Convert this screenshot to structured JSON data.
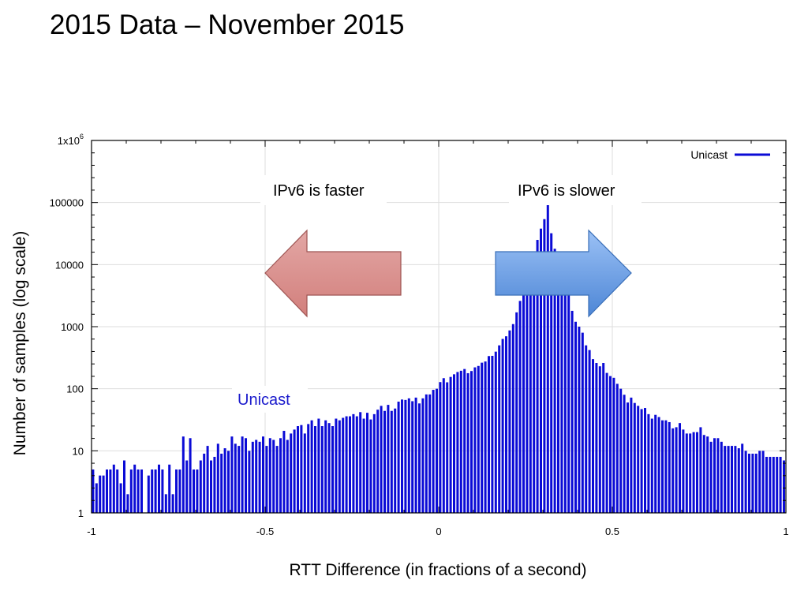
{
  "slide": {
    "title": "2015 Data – November 2015"
  },
  "chart_data": {
    "type": "bar",
    "title": "",
    "xlabel": "RTT Difference (in fractions of a second)",
    "ylabel": "Number of samples (log scale)",
    "xlim": [
      -1,
      1
    ],
    "ylim": [
      1,
      1000000
    ],
    "yscale": "log",
    "grid": true,
    "legend": {
      "position": "top-right",
      "entries": [
        {
          "name": "Unicast",
          "color": "#0b0bd6"
        }
      ]
    },
    "x_ticks": [
      "-1",
      "-0.5",
      "0",
      "0.5",
      "1"
    ],
    "y_ticks": [
      {
        "base": "1x10",
        "exp": "6"
      },
      {
        "base": "100000",
        "exp": ""
      },
      {
        "base": "10000",
        "exp": ""
      },
      {
        "base": "1000",
        "exp": ""
      },
      {
        "base": "100",
        "exp": ""
      },
      {
        "base": "10",
        "exp": ""
      },
      {
        "base": "1",
        "exp": ""
      }
    ],
    "annotations": {
      "faster": "IPv6 is faster",
      "slower": "IPv6 is slower",
      "series_label": "Unicast"
    },
    "series": [
      {
        "name": "Unicast",
        "color": "#0b0bd6",
        "bin_width": 0.01,
        "x": [
          -0.995,
          -0.985,
          -0.975,
          -0.965,
          -0.955,
          -0.945,
          -0.935,
          -0.925,
          -0.915,
          -0.905,
          -0.895,
          -0.885,
          -0.875,
          -0.865,
          -0.855,
          -0.845,
          -0.835,
          -0.825,
          -0.815,
          -0.805,
          -0.795,
          -0.785,
          -0.775,
          -0.765,
          -0.755,
          -0.745,
          -0.735,
          -0.725,
          -0.715,
          -0.705,
          -0.695,
          -0.685,
          -0.675,
          -0.665,
          -0.655,
          -0.645,
          -0.635,
          -0.625,
          -0.615,
          -0.605,
          -0.595,
          -0.585,
          -0.575,
          -0.565,
          -0.555,
          -0.545,
          -0.535,
          -0.525,
          -0.515,
          -0.505,
          -0.495,
          -0.485,
          -0.475,
          -0.465,
          -0.455,
          -0.445,
          -0.435,
          -0.425,
          -0.415,
          -0.405,
          -0.395,
          -0.385,
          -0.375,
          -0.365,
          -0.355,
          -0.345,
          -0.335,
          -0.325,
          -0.315,
          -0.305,
          -0.295,
          -0.285,
          -0.275,
          -0.265,
          -0.255,
          -0.245,
          -0.235,
          -0.225,
          -0.215,
          -0.205,
          -0.195,
          -0.185,
          -0.175,
          -0.165,
          -0.155,
          -0.145,
          -0.135,
          -0.125,
          -0.115,
          -0.105,
          -0.095,
          -0.085,
          -0.075,
          -0.065,
          -0.055,
          -0.045,
          -0.035,
          -0.025,
          -0.015,
          -0.005,
          0.005,
          0.015,
          0.025,
          0.035,
          0.045,
          0.055,
          0.065,
          0.075,
          0.085,
          0.095,
          0.105,
          0.115,
          0.125,
          0.135,
          0.145,
          0.155,
          0.165,
          0.175,
          0.185,
          0.195,
          0.205,
          0.215,
          0.225,
          0.235,
          0.245,
          0.255,
          0.265,
          0.275,
          0.285,
          0.295,
          0.305,
          0.315,
          0.325,
          0.335,
          0.345,
          0.355,
          0.365,
          0.375,
          0.385,
          0.395,
          0.405,
          0.415,
          0.425,
          0.435,
          0.445,
          0.455,
          0.465,
          0.475,
          0.485,
          0.495,
          0.505,
          0.515,
          0.525,
          0.535,
          0.545,
          0.555,
          0.565,
          0.575,
          0.585,
          0.595,
          0.605,
          0.615,
          0.625,
          0.635,
          0.645,
          0.655,
          0.665,
          0.675,
          0.685,
          0.695,
          0.705,
          0.715,
          0.725,
          0.735,
          0.745,
          0.755,
          0.765,
          0.775,
          0.785,
          0.795,
          0.805,
          0.815,
          0.825,
          0.835,
          0.845,
          0.855,
          0.865,
          0.875,
          0.885,
          0.895,
          0.905,
          0.915,
          0.925,
          0.935,
          0.945,
          0.955,
          0.965,
          0.975,
          0.985,
          0.995
        ],
        "values": [
          5,
          3,
          4,
          4,
          5,
          5,
          6,
          5,
          3,
          7,
          2,
          5,
          6,
          5,
          5,
          1,
          4,
          5,
          5,
          6,
          5,
          2,
          6,
          2,
          5,
          5,
          17,
          7,
          16,
          5,
          5,
          7,
          9,
          12,
          7,
          8,
          13,
          9,
          11,
          10,
          17,
          13,
          12,
          17,
          16,
          10,
          14,
          15,
          14,
          17,
          12,
          16,
          15,
          12,
          16,
          21,
          15,
          19,
          22,
          25,
          26,
          19,
          27,
          31,
          25,
          33,
          25,
          31,
          28,
          25,
          33,
          31,
          34,
          36,
          36,
          39,
          36,
          42,
          33,
          41,
          32,
          39,
          46,
          53,
          44,
          55,
          44,
          48,
          62,
          67,
          66,
          70,
          63,
          72,
          58,
          70,
          81,
          81,
          96,
          100,
          128,
          148,
          127,
          155,
          171,
          186,
          195,
          208,
          178,
          193,
          221,
          233,
          263,
          275,
          336,
          339,
          396,
          500,
          635,
          700,
          870,
          1100,
          1700,
          2600,
          4000,
          6500,
          10000,
          13000,
          25000,
          38000,
          54000,
          200000,
          32000,
          18000,
          14000,
          10000,
          6000,
          3500,
          1800,
          1200,
          1000,
          800,
          500,
          420,
          300,
          260,
          230,
          260,
          180,
          160,
          150,
          120,
          100,
          80,
          60,
          72,
          59,
          53,
          47,
          49,
          39,
          33,
          38,
          35,
          31,
          31,
          29,
          23,
          24,
          28,
          22,
          19,
          19,
          20,
          20,
          24,
          18,
          17,
          14,
          16,
          16,
          14,
          12,
          12,
          12,
          12,
          11,
          13,
          10,
          9,
          9,
          9,
          10,
          10,
          8,
          8,
          8,
          8,
          8,
          7
        ]
      }
    ]
  }
}
